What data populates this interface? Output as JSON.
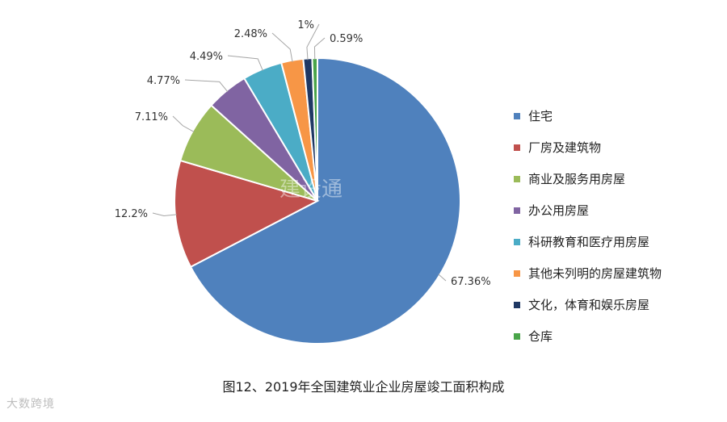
{
  "chart_data": {
    "type": "pie",
    "title": "图12、2019年全国建筑业企业房屋竣工面积构成",
    "legend_position": "right",
    "slices": [
      {
        "name": "住宅",
        "value": 67.36,
        "label": "67.36%",
        "color": "#4f81bd"
      },
      {
        "name": "厂房及建筑物",
        "value": 12.2,
        "label": "12.2%",
        "color": "#c0504d"
      },
      {
        "name": "商业及服务用房屋",
        "value": 7.11,
        "label": "7.11%",
        "color": "#9bbb59"
      },
      {
        "name": "办公用房屋",
        "value": 4.77,
        "label": "4.77%",
        "color": "#8064a2"
      },
      {
        "name": "科研教育和医疗用房屋",
        "value": 4.49,
        "label": "4.49%",
        "color": "#4bacc6"
      },
      {
        "name": "其他未列明的房屋建筑物",
        "value": 2.48,
        "label": "2.48%",
        "color": "#f79646"
      },
      {
        "name": "文化，体育和娱乐房屋",
        "value": 1,
        "label": "1%",
        "color": "#1f3864"
      },
      {
        "name": "仓库",
        "value": 0.59,
        "label": "0.59%",
        "color": "#4aa54a"
      }
    ]
  },
  "watermark": {
    "text": "建设通"
  },
  "brand": {
    "text": "大数跨境"
  }
}
